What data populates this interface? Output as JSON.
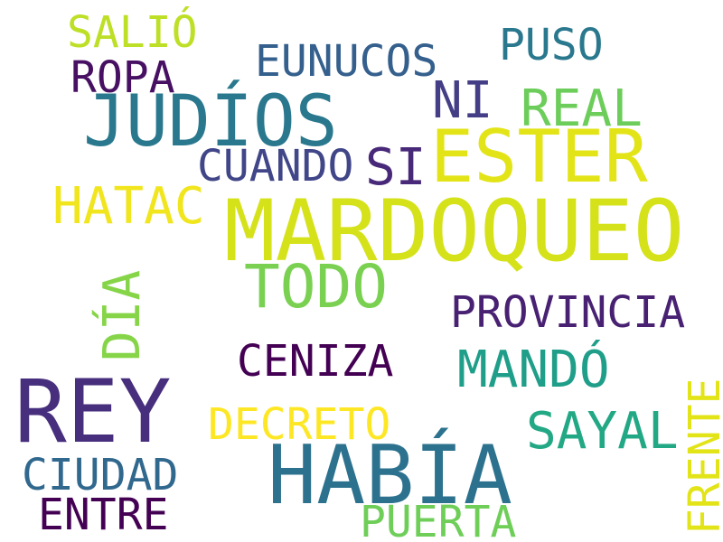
{
  "words": [
    {
      "text": "MARDOQUEO",
      "color": "#d5e21a"
    },
    {
      "text": "REY",
      "color": "#472f7d"
    },
    {
      "text": "HABÍA",
      "color": "#2c728e"
    },
    {
      "text": "JUDÍOS",
      "color": "#2a788e"
    },
    {
      "text": "ESTER",
      "color": "#e3e418"
    },
    {
      "text": "TODO",
      "color": "#7ad151"
    },
    {
      "text": "SAYAL",
      "color": "#22a884"
    },
    {
      "text": "MANDÓ",
      "color": "#1f9e89"
    },
    {
      "text": "HATAC",
      "color": "#f1e51d"
    },
    {
      "text": "REAL",
      "color": "#6ccd5a"
    },
    {
      "text": "NI",
      "color": "#433e85"
    },
    {
      "text": "SI",
      "color": "#482878"
    },
    {
      "text": "PROVINCIA",
      "color": "#482173"
    },
    {
      "text": "CENIZA",
      "color": "#440154"
    },
    {
      "text": "DECRETO",
      "color": "#fde725"
    },
    {
      "text": "CIUDAD",
      "color": "#31688e"
    },
    {
      "text": "ENTRE",
      "color": "#440154"
    },
    {
      "text": "PUERTA",
      "color": "#6ece58"
    },
    {
      "text": "EUNUCOS",
      "color": "#35608d"
    },
    {
      "text": "PUSO",
      "color": "#2a788e"
    },
    {
      "text": "ROPA",
      "color": "#471063"
    },
    {
      "text": "SALIÓ",
      "color": "#bddf26"
    },
    {
      "text": "CUANDO",
      "color": "#404688"
    },
    {
      "text": "DÍA",
      "color": "#86d549"
    },
    {
      "text": "FRENTE",
      "color": "#e2e418"
    }
  ]
}
